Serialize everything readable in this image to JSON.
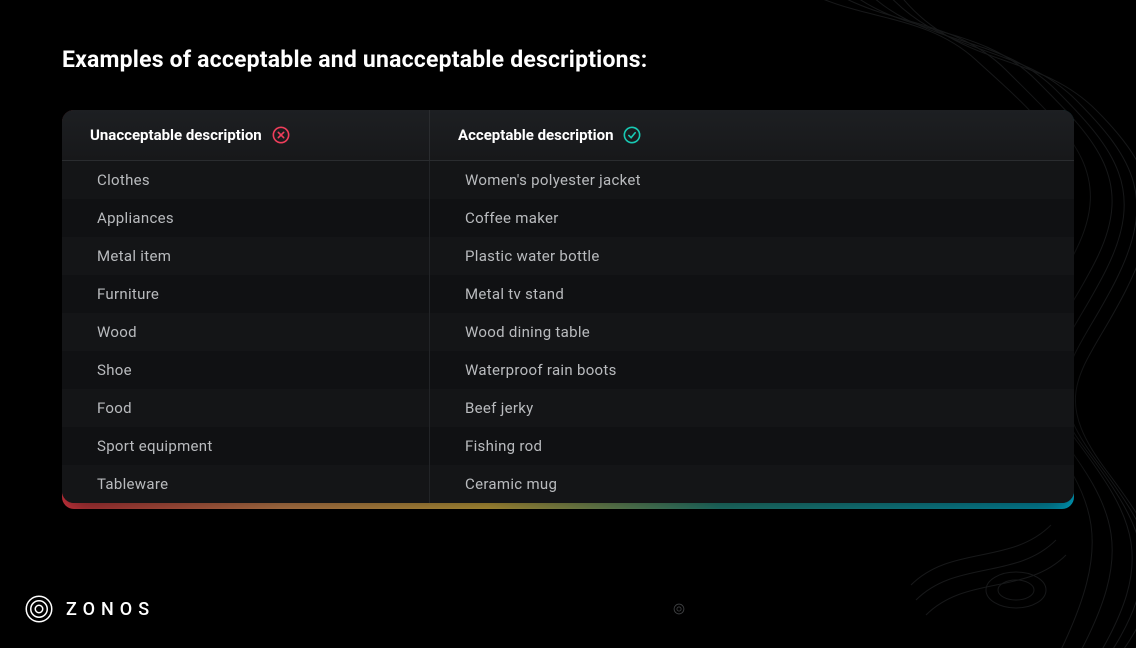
{
  "heading": "Examples of acceptable and unacceptable descriptions:",
  "table": {
    "columns": [
      {
        "label": "Unacceptable description",
        "icon": "x",
        "icon_color": "#ef3e5b"
      },
      {
        "label": "Acceptable description",
        "icon": "check",
        "icon_color": "#18c9b3"
      }
    ],
    "rows": [
      {
        "unacceptable": "Clothes",
        "acceptable": "Women's polyester jacket"
      },
      {
        "unacceptable": "Appliances",
        "acceptable": "Coffee maker"
      },
      {
        "unacceptable": "Metal item",
        "acceptable": "Plastic water bottle"
      },
      {
        "unacceptable": "Furniture",
        "acceptable": "Metal tv stand"
      },
      {
        "unacceptable": "Wood",
        "acceptable": "Wood dining table"
      },
      {
        "unacceptable": "Shoe",
        "acceptable": "Waterproof rain boots"
      },
      {
        "unacceptable": "Food",
        "acceptable": "Beef jerky"
      },
      {
        "unacceptable": "Sport equipment",
        "acceptable": "Fishing rod"
      },
      {
        "unacceptable": "Tableware",
        "acceptable": "Ceramic mug"
      }
    ],
    "header_bg": "#1d1f22",
    "row_bg_odd": "#141517",
    "row_bg_even": "#101113",
    "border_color": "#2a2c2f",
    "text_color": "#b9bbbe",
    "header_text_color": "#ffffff",
    "gradient_underline": [
      "#e63946",
      "#f4a261",
      "#f2c94c",
      "#2a9d8f",
      "#00b4d8"
    ]
  },
  "brand": {
    "name": "ZONOS",
    "logo_color": "#ffffff"
  },
  "background_color": "#000000",
  "topo_line_color": "#3a3d40"
}
